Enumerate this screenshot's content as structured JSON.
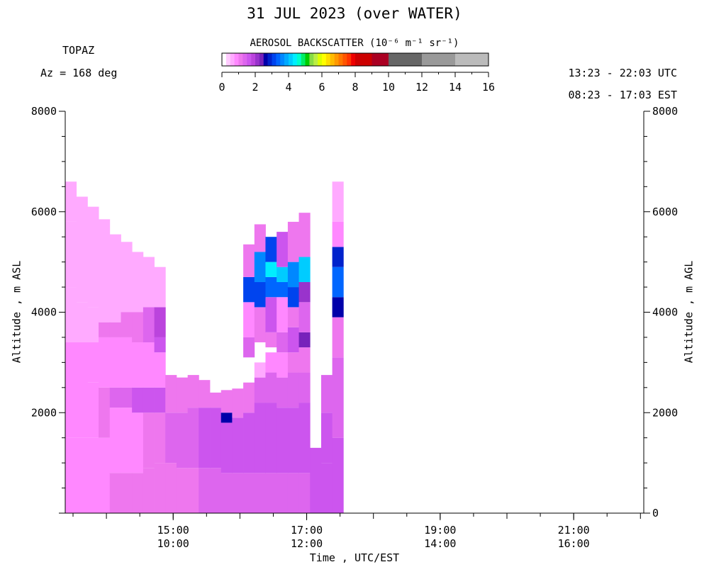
{
  "chart_data": {
    "type": "heatmap",
    "title": "31 JUL 2023 (over WATER)",
    "site": "TOPAZ",
    "azimuth": "Az = 168 deg",
    "time_range_utc": "13:23 - 22:03 UTC",
    "time_range_est": "08:23 - 17:03 EST",
    "xlabel": "Time , UTC/EST",
    "ylabel_left": "Altitude , m ASL",
    "ylabel_right": "Altitude , m AGL",
    "x_unit": "hours UTC",
    "xlim": [
      13.383,
      22.05
    ],
    "ylim": [
      0,
      8000
    ],
    "x_ticks": [
      {
        "value": 15,
        "utc": "15:00",
        "est": "10:00"
      },
      {
        "value": 17,
        "utc": "17:00",
        "est": "12:00"
      },
      {
        "value": 19,
        "utc": "19:00",
        "est": "14:00"
      },
      {
        "value": 21,
        "utc": "21:00",
        "est": "16:00"
      }
    ],
    "y_ticks_left": [
      {
        "value": 2000,
        "label": "2000"
      },
      {
        "value": 4000,
        "label": "4000"
      },
      {
        "value": 6000,
        "label": "6000"
      },
      {
        "value": 8000,
        "label": "8000"
      }
    ],
    "y_ticks_right": [
      {
        "value": 0,
        "label": "0"
      },
      {
        "value": 2000,
        "label": "2000"
      },
      {
        "value": 4000,
        "label": "4000"
      },
      {
        "value": 6000,
        "label": "6000"
      },
      {
        "value": 8000,
        "label": "8000"
      }
    ],
    "colorbar": {
      "title": "AEROSOL BACKSCATTER (10⁻⁶ m⁻¹ sr⁻¹)",
      "min": 0,
      "max": 16,
      "tick_labels": [
        "0",
        "2",
        "4",
        "6",
        "8",
        "10",
        "12",
        "14",
        "16"
      ],
      "segments": [
        {
          "from": 0,
          "to": 0.25,
          "color": "#ffffff"
        },
        {
          "from": 0.25,
          "to": 0.5,
          "color": "#ffccff"
        },
        {
          "from": 0.5,
          "to": 0.75,
          "color": "#ffaaff"
        },
        {
          "from": 0.75,
          "to": 1,
          "color": "#ff88ff"
        },
        {
          "from": 1,
          "to": 1.25,
          "color": "#ee77ee"
        },
        {
          "from": 1.25,
          "to": 1.5,
          "color": "#dd66ee"
        },
        {
          "from": 1.5,
          "to": 1.75,
          "color": "#cc55ee"
        },
        {
          "from": 1.75,
          "to": 2,
          "color": "#bb44dd"
        },
        {
          "from": 2,
          "to": 2.25,
          "color": "#9933cc"
        },
        {
          "from": 2.25,
          "to": 2.5,
          "color": "#7722bb"
        },
        {
          "from": 2.5,
          "to": 2.75,
          "color": "#0000aa"
        },
        {
          "from": 2.75,
          "to": 3,
          "color": "#0022cc"
        },
        {
          "from": 3,
          "to": 3.25,
          "color": "#0044ee"
        },
        {
          "from": 3.25,
          "to": 3.5,
          "color": "#0066ff"
        },
        {
          "from": 3.5,
          "to": 3.75,
          "color": "#0088ff"
        },
        {
          "from": 3.75,
          "to": 4,
          "color": "#00aaff"
        },
        {
          "from": 4,
          "to": 4.25,
          "color": "#00ccff"
        },
        {
          "from": 4.25,
          "to": 4.5,
          "color": "#00eeff"
        },
        {
          "from": 4.5,
          "to": 4.75,
          "color": "#00ffcc"
        },
        {
          "from": 4.75,
          "to": 5,
          "color": "#00ee66"
        },
        {
          "from": 5,
          "to": 5.25,
          "color": "#00cc00"
        },
        {
          "from": 5.25,
          "to": 5.5,
          "color": "#88dd44"
        },
        {
          "from": 5.5,
          "to": 5.75,
          "color": "#bbee44"
        },
        {
          "from": 5.75,
          "to": 6,
          "color": "#ddff00"
        },
        {
          "from": 6,
          "to": 6.25,
          "color": "#ffff00"
        },
        {
          "from": 6.25,
          "to": 6.5,
          "color": "#ffdd00"
        },
        {
          "from": 6.5,
          "to": 6.75,
          "color": "#ffbb00"
        },
        {
          "from": 6.75,
          "to": 7,
          "color": "#ff9900"
        },
        {
          "from": 7,
          "to": 7.25,
          "color": "#ff7700"
        },
        {
          "from": 7.25,
          "to": 7.5,
          "color": "#ff5500"
        },
        {
          "from": 7.5,
          "to": 7.75,
          "color": "#ff3300"
        },
        {
          "from": 7.75,
          "to": 8,
          "color": "#ee0000"
        },
        {
          "from": 8,
          "to": 9,
          "color": "#cc0000"
        },
        {
          "from": 9,
          "to": 10,
          "color": "#aa0022"
        },
        {
          "from": 10,
          "to": 12,
          "color": "#666666"
        },
        {
          "from": 12,
          "to": 14,
          "color": "#999999"
        },
        {
          "from": 14,
          "to": 16,
          "color": "#bbbbbb"
        }
      ]
    },
    "bin_width_hours": 0.1667,
    "columns": [
      {
        "t": 13.383,
        "top": 6600,
        "layers": [
          [
            0,
            1500,
            0.9
          ],
          [
            1500,
            3400,
            0.8
          ],
          [
            3400,
            4500,
            0.6
          ],
          [
            4500,
            5800,
            0.5
          ],
          [
            5800,
            6600,
            0.6
          ]
        ]
      },
      {
        "t": 13.55,
        "top": 6300,
        "layers": [
          [
            0,
            1500,
            0.9
          ],
          [
            1500,
            3400,
            0.8
          ],
          [
            3400,
            4200,
            0.6
          ],
          [
            4200,
            5700,
            0.6
          ],
          [
            5700,
            6300,
            0.5
          ]
        ]
      },
      {
        "t": 13.717,
        "top": 6100,
        "layers": [
          [
            0,
            1500,
            0.9
          ],
          [
            1500,
            2600,
            0.8
          ],
          [
            2600,
            3400,
            0.8
          ],
          [
            3400,
            4100,
            0.6
          ],
          [
            4100,
            6100,
            0.6
          ]
        ]
      },
      {
        "t": 13.883,
        "top": 5850,
        "layers": [
          [
            0,
            1500,
            0.9
          ],
          [
            1500,
            2500,
            1.0
          ],
          [
            2500,
            3500,
            0.8
          ],
          [
            3500,
            3800,
            1.0
          ],
          [
            3800,
            5850,
            0.6
          ]
        ]
      },
      {
        "t": 14.05,
        "top": 5550,
        "layers": [
          [
            0,
            800,
            1.0
          ],
          [
            800,
            2100,
            0.8
          ],
          [
            2100,
            2500,
            1.3
          ],
          [
            2500,
            3500,
            0.8
          ],
          [
            3500,
            3800,
            1.1
          ],
          [
            3800,
            5550,
            0.6
          ]
        ]
      },
      {
        "t": 14.217,
        "top": 5400,
        "layers": [
          [
            0,
            800,
            1.1
          ],
          [
            800,
            2100,
            0.8
          ],
          [
            2100,
            2500,
            1.3
          ],
          [
            2500,
            3500,
            0.8
          ],
          [
            3500,
            4000,
            1.1
          ],
          [
            4000,
            5400,
            0.6
          ]
        ]
      },
      {
        "t": 14.383,
        "top": 5200,
        "layers": [
          [
            0,
            800,
            1.1
          ],
          [
            800,
            2000,
            0.9
          ],
          [
            2000,
            2500,
            1.5
          ],
          [
            2500,
            3400,
            0.9
          ],
          [
            3400,
            4000,
            1.2
          ],
          [
            4000,
            5200,
            0.6
          ]
        ]
      },
      {
        "t": 14.55,
        "top": 5100,
        "layers": [
          [
            0,
            900,
            1.1
          ],
          [
            900,
            2000,
            1.0
          ],
          [
            2000,
            2500,
            1.5
          ],
          [
            2500,
            3400,
            0.9
          ],
          [
            3400,
            4100,
            1.3
          ],
          [
            4100,
            5100,
            0.6
          ]
        ]
      },
      {
        "t": 14.717,
        "top": 4900,
        "layers": [
          [
            0,
            1000,
            1.2
          ],
          [
            1000,
            2000,
            1.2
          ],
          [
            2000,
            2500,
            1.5
          ],
          [
            2500,
            3200,
            0.9
          ],
          [
            3200,
            3500,
            1.5
          ],
          [
            3500,
            4100,
            1.8
          ],
          [
            4100,
            4900,
            0.7
          ]
        ]
      },
      {
        "t": 14.883,
        "top": 2750,
        "layers": [
          [
            0,
            1000,
            1.2
          ],
          [
            1000,
            2000,
            1.3
          ],
          [
            2000,
            2750,
            1.2
          ]
        ]
      },
      {
        "t": 15.05,
        "top": 2700,
        "layers": [
          [
            0,
            900,
            1.2
          ],
          [
            900,
            2000,
            1.4
          ],
          [
            2000,
            2700,
            1.0
          ]
        ]
      },
      {
        "t": 15.217,
        "top": 2750,
        "layers": [
          [
            0,
            900,
            1.2
          ],
          [
            900,
            2100,
            1.4
          ],
          [
            2100,
            2750,
            1.0
          ]
        ]
      },
      {
        "t": 15.383,
        "top": 2650,
        "layers": [
          [
            0,
            900,
            1.3
          ],
          [
            900,
            2100,
            1.5
          ],
          [
            2100,
            2650,
            1.0
          ]
        ]
      },
      {
        "t": 15.55,
        "top": 2400,
        "layers": [
          [
            0,
            900,
            1.3
          ],
          [
            900,
            2100,
            1.5
          ],
          [
            2100,
            2400,
            1.1
          ]
        ]
      },
      {
        "t": 15.717,
        "top": 2450,
        "layers": [
          [
            0,
            800,
            1.4
          ],
          [
            800,
            1800,
            1.6
          ],
          [
            1800,
            2000,
            2.7
          ],
          [
            2000,
            2450,
            1.2
          ]
        ]
      },
      {
        "t": 15.883,
        "top": 2480,
        "layers": [
          [
            0,
            800,
            1.4
          ],
          [
            800,
            1900,
            1.7
          ],
          [
            1900,
            2480,
            1.2
          ]
        ]
      },
      {
        "t": 16.05,
        "top": 5350,
        "layers": [
          [
            0,
            800,
            1.4
          ],
          [
            800,
            2000,
            1.7
          ],
          [
            2000,
            2600,
            1.2
          ],
          [
            3100,
            3500,
            1.3
          ],
          [
            3500,
            4200,
            0.8
          ],
          [
            4200,
            4700,
            3.0
          ],
          [
            4700,
            5350,
            1.0
          ]
        ]
      },
      {
        "t": 16.217,
        "top": 5750,
        "layers": [
          [
            0,
            800,
            1.4
          ],
          [
            800,
            2200,
            1.7
          ],
          [
            2200,
            2700,
            1.3
          ],
          [
            2700,
            3000,
            0.7
          ],
          [
            3400,
            4100,
            1.2
          ],
          [
            4100,
            4600,
            3.0
          ],
          [
            4600,
            5200,
            3.6
          ],
          [
            5200,
            5750,
            1.0
          ]
        ]
      },
      {
        "t": 16.383,
        "top": 5500,
        "layers": [
          [
            0,
            800,
            1.4
          ],
          [
            800,
            2200,
            1.7
          ],
          [
            2200,
            2800,
            1.3
          ],
          [
            2800,
            3200,
            0.8
          ],
          [
            3300,
            3600,
            1.0
          ],
          [
            3600,
            4300,
            1.6
          ],
          [
            4300,
            4700,
            3.3
          ],
          [
            4700,
            5000,
            4.4
          ],
          [
            5000,
            5500,
            3.0
          ]
        ]
      },
      {
        "t": 16.55,
        "top": 5600,
        "layers": [
          [
            0,
            800,
            1.4
          ],
          [
            800,
            2100,
            1.7
          ],
          [
            2100,
            2700,
            1.3
          ],
          [
            2700,
            3200,
            0.8
          ],
          [
            3200,
            3600,
            1.4
          ],
          [
            3600,
            4300,
            0.8
          ],
          [
            4300,
            4600,
            3.3
          ],
          [
            4600,
            4900,
            4.2
          ],
          [
            4900,
            5600,
            1.5
          ]
        ]
      },
      {
        "t": 16.717,
        "top": 5800,
        "layers": [
          [
            0,
            800,
            1.4
          ],
          [
            800,
            2100,
            1.7
          ],
          [
            2100,
            2800,
            1.3
          ],
          [
            2800,
            3200,
            1.0
          ],
          [
            3200,
            3700,
            1.7
          ],
          [
            3700,
            4100,
            1.0
          ],
          [
            4100,
            4500,
            3.2
          ],
          [
            4500,
            5000,
            3.6
          ],
          [
            5000,
            5800,
            1.2
          ]
        ]
      },
      {
        "t": 16.883,
        "top": 5980,
        "layers": [
          [
            0,
            800,
            1.4
          ],
          [
            800,
            2200,
            1.6
          ],
          [
            2200,
            2800,
            1.4
          ],
          [
            2800,
            3300,
            1.2
          ],
          [
            3300,
            3600,
            2.4
          ],
          [
            3600,
            4200,
            1.4
          ],
          [
            4200,
            4600,
            2.2
          ],
          [
            4600,
            5100,
            4.0
          ],
          [
            5100,
            5980,
            1.0
          ]
        ]
      },
      {
        "t": 17.05,
        "top": 1300,
        "layers": [
          [
            0,
            1300,
            1.6
          ]
        ]
      },
      {
        "t": 17.217,
        "top": 2750,
        "layers": [
          [
            0,
            1000,
            1.6
          ],
          [
            1000,
            2000,
            1.5
          ],
          [
            2000,
            2750,
            1.3
          ]
        ]
      },
      {
        "t": 17.383,
        "top": 6600,
        "layers": [
          [
            0,
            1500,
            1.5
          ],
          [
            1500,
            3100,
            1.3
          ],
          [
            3100,
            3900,
            1.0
          ],
          [
            3900,
            4300,
            2.5
          ],
          [
            4300,
            4900,
            3.4
          ],
          [
            4900,
            5300,
            2.8
          ],
          [
            5300,
            5800,
            0.9
          ],
          [
            5800,
            6600,
            0.6
          ]
        ]
      }
    ]
  }
}
